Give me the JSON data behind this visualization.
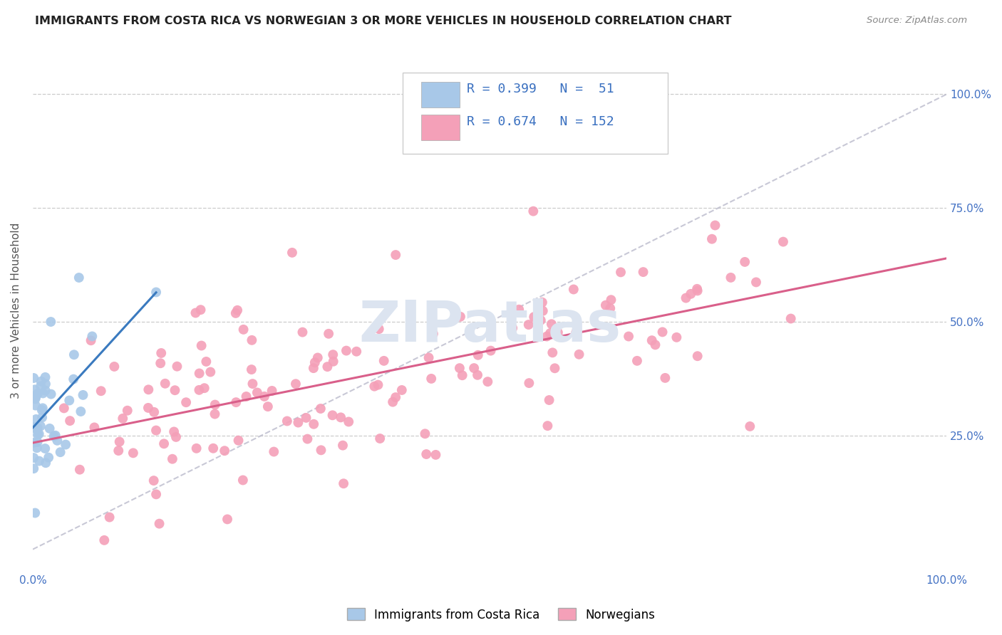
{
  "title": "IMMIGRANTS FROM COSTA RICA VS NORWEGIAN 3 OR MORE VEHICLES IN HOUSEHOLD CORRELATION CHART",
  "source": "Source: ZipAtlas.com",
  "ylabel": "3 or more Vehicles in Household",
  "legend_r1": "R = 0.399",
  "legend_n1": "N =  51",
  "legend_r2": "R = 0.674",
  "legend_n2": "N = 152",
  "color_blue": "#a8c8e8",
  "color_pink": "#f4a0b8",
  "color_blue_line": "#3a7abf",
  "color_pink_line": "#d95f8a",
  "color_dashed": "#bbbbcc",
  "watermark_color": "#dce4f0",
  "background_color": "#ffffff",
  "grid_color": "#cccccc",
  "ytick_color": "#4472c4",
  "xtick_color": "#4472c4"
}
